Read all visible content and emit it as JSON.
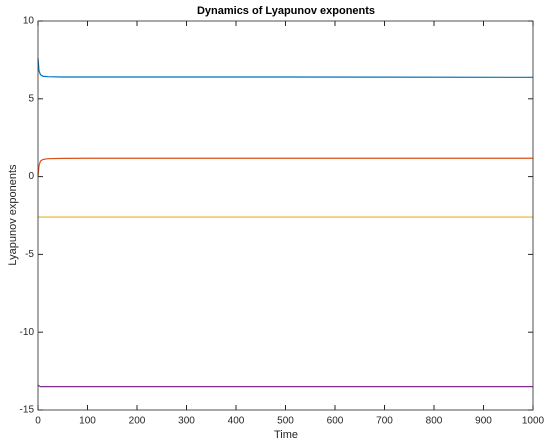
{
  "chart_data": {
    "type": "line",
    "title": "Dynamics of Lyapunov exponents",
    "x_label": "Time",
    "y_label": "Lyapunov exponents",
    "x": [
      0,
      2,
      5,
      10,
      20,
      50,
      100,
      200,
      500,
      1000
    ],
    "series": [
      {
        "color": "#0072BD",
        "values": [
          7.6,
          6.8,
          6.55,
          6.45,
          6.42,
          6.4,
          6.4,
          6.4,
          6.4,
          6.38
        ]
      },
      {
        "color": "#D95319",
        "values": [
          0,
          0.7,
          1.0,
          1.1,
          1.15,
          1.17,
          1.18,
          1.18,
          1.18,
          1.18
        ]
      },
      {
        "color": "#EDB120",
        "values": [
          -2.6,
          -2.6,
          -2.6,
          -2.6,
          -2.6,
          -2.6,
          -2.6,
          -2.6,
          -2.6,
          -2.6
        ]
      },
      {
        "color": "#7E2F8E",
        "values": [
          -13.4,
          -13.45,
          -13.5,
          -13.5,
          -13.5,
          -13.5,
          -13.5,
          -13.5,
          -13.5,
          -13.5
        ]
      }
    ],
    "xlim": [
      0,
      1000
    ],
    "xticks": [
      0,
      100,
      200,
      300,
      400,
      500,
      600,
      700,
      800,
      900,
      1000
    ],
    "ylim": [
      -15,
      10
    ],
    "yticks": [
      -15,
      -10,
      -5,
      0,
      5,
      10
    ],
    "grid": false
  }
}
